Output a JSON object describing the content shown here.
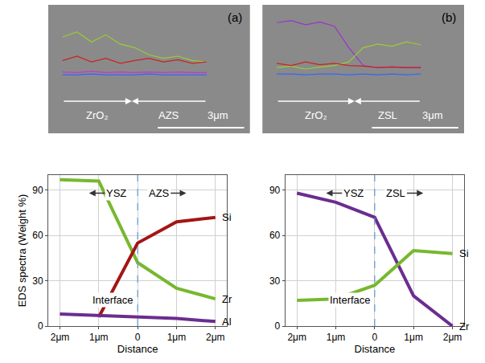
{
  "chart_data": [
    {
      "type": "line",
      "title": "(a)",
      "tick_labels": false,
      "x": [
        0.5,
        1.0,
        1.5,
        2.0,
        2.5,
        3.0,
        3.5,
        4.0,
        4.5,
        5.0,
        5.5
      ],
      "xlim": [
        0,
        7
      ],
      "ylim": [
        -80,
        100
      ],
      "series": [
        {
          "color": "#9acd32",
          "values": [
            55,
            62,
            48,
            58,
            45,
            40,
            30,
            25,
            28,
            22,
            20
          ]
        },
        {
          "color": "#cc2222",
          "values": [
            22,
            28,
            20,
            25,
            18,
            22,
            25,
            20,
            23,
            18,
            20
          ]
        },
        {
          "color": "#cc33cc",
          "values": [
            6,
            5,
            7,
            5,
            6,
            5,
            6,
            5,
            6,
            5,
            5
          ]
        },
        {
          "color": "#3366ff",
          "values": [
            2,
            2,
            3,
            2,
            2,
            2,
            3,
            2,
            2,
            2,
            2
          ]
        }
      ],
      "interface": 2.9,
      "labels": [
        "ZrO₂",
        "AZS"
      ],
      "scale_bar": {
        "label": "3μm",
        "length": 3
      }
    },
    {
      "type": "line",
      "title": "(b)",
      "tick_labels": false,
      "x": [
        0.5,
        1.0,
        1.5,
        2.0,
        2.5,
        3.0,
        3.5,
        4.0,
        4.5,
        5.0,
        5.5
      ],
      "xlim": [
        0,
        7
      ],
      "ylim": [
        -80,
        100
      ],
      "series": [
        {
          "color": "#9933cc",
          "values": [
            75,
            78,
            72,
            76,
            70,
            40,
            15,
            12,
            13,
            12,
            12
          ]
        },
        {
          "color": "#9acd32",
          "values": [
            12,
            14,
            10,
            13,
            15,
            20,
            40,
            45,
            42,
            48,
            44
          ]
        },
        {
          "color": "#cc2222",
          "values": [
            18,
            15,
            20,
            16,
            18,
            15,
            14,
            12,
            13,
            12,
            12
          ]
        },
        {
          "color": "#3366ff",
          "values": [
            3,
            3,
            2,
            3,
            3,
            2,
            3,
            2,
            3,
            2,
            3
          ]
        }
      ],
      "interface": 3.2,
      "labels": [
        "ZrO₂",
        "ZSL"
      ],
      "scale_bar": {
        "label": "3μm",
        "length": 3
      }
    },
    {
      "type": "line",
      "xlabel": "Distance",
      "ylabel": "EDS spectra (Weight %)",
      "grid": true,
      "x": [
        -2,
        -1,
        0,
        1,
        2
      ],
      "xlim": [
        -2.3,
        2.3
      ],
      "ylim": [
        0,
        100
      ],
      "xticks": [
        {
          "value": -2,
          "label": "2μm"
        },
        {
          "value": -1,
          "label": "1μm"
        },
        0,
        {
          "value": 1,
          "label": "1μm"
        },
        {
          "value": 2,
          "label": "2μm"
        }
      ],
      "yticks": [
        0,
        30,
        60,
        90
      ],
      "series": [
        {
          "name": "Zr",
          "color": "#77b82e",
          "values": [
            97,
            96,
            42,
            25,
            18
          ]
        },
        {
          "name": "Si",
          "color": "#a31515",
          "values": [
            null,
            6,
            55,
            69,
            72
          ]
        },
        {
          "name": "Al",
          "color": "#6b2d8f",
          "values": [
            8,
            7,
            6,
            5,
            3
          ]
        }
      ],
      "interface": {
        "x": 0,
        "label": "Interface"
      },
      "regions": [
        "YSZ",
        "AZS"
      ]
    },
    {
      "type": "line",
      "xlabel": "Distance",
      "grid": true,
      "x": [
        -2,
        -1,
        0,
        1,
        2
      ],
      "xlim": [
        -2.3,
        2.3
      ],
      "ylim": [
        0,
        100
      ],
      "xticks": [
        {
          "value": -2,
          "label": "2μm"
        },
        {
          "value": -1,
          "label": "1μm"
        },
        0,
        {
          "value": 1,
          "label": "1μm"
        },
        {
          "value": 2,
          "label": "2μm"
        }
      ],
      "yticks": [
        0,
        30,
        60,
        90
      ],
      "series": [
        {
          "name": "Zr",
          "color": "#6b2d8f",
          "values": [
            88,
            82,
            72,
            20,
            0
          ]
        },
        {
          "name": "Si",
          "color": "#77b82e",
          "values": [
            17,
            18,
            27,
            50,
            48
          ]
        }
      ],
      "interface": {
        "x": 0,
        "label": "Interface"
      },
      "regions": [
        "YSZ",
        "ZSL"
      ]
    }
  ]
}
